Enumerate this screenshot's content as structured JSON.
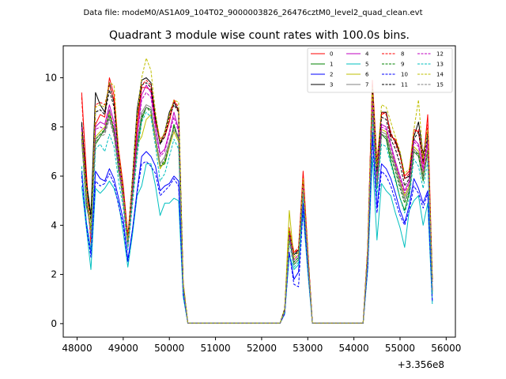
{
  "file_title": "Data file: modeM0/AS1A09_104T02_9000003826_26476cztM0_level2_quad_clean.evt",
  "chart_data": {
    "type": "line",
    "title": "Quadrant 3 module wise count rates with 100.0s bins.",
    "xlabel": "",
    "ylabel": "",
    "x_offset_label": "+3.356e8",
    "xlim": [
      47700,
      56200
    ],
    "ylim": [
      -0.55,
      11.3
    ],
    "xticks": [
      48000,
      49000,
      50000,
      51000,
      52000,
      53000,
      54000,
      55000,
      56000
    ],
    "xtick_labels": [
      "48000",
      "49000",
      "50000",
      "51000",
      "52000",
      "53000",
      "54000",
      "55000",
      "56000"
    ],
    "yticks": [
      0,
      2,
      4,
      6,
      8,
      10
    ],
    "ytick_labels": [
      "0",
      "2",
      "4",
      "6",
      "8",
      "10"
    ],
    "legend_position": "top-right",
    "legend_columns": 4,
    "x": [
      48100,
      48200,
      48300,
      48400,
      48500,
      48600,
      48700,
      48800,
      48900,
      49000,
      49100,
      49200,
      49300,
      49400,
      49500,
      49600,
      49700,
      49800,
      49900,
      50000,
      50100,
      50200,
      50300,
      50400,
      51000,
      51500,
      52000,
      52400,
      52500,
      52600,
      52700,
      52800,
      52900,
      53000,
      53100,
      53500,
      54000,
      54200,
      54300,
      54400,
      54500,
      54600,
      54700,
      54800,
      54900,
      55000,
      55100,
      55200,
      55300,
      55400,
      55500,
      55600,
      55700
    ],
    "series": [
      {
        "name": "0",
        "color": "#ff0000",
        "dash": "solid",
        "values": [
          9.4,
          6.2,
          3.3,
          8.1,
          8.5,
          8.4,
          10.0,
          9.3,
          7.1,
          5.6,
          3.6,
          5.7,
          8.0,
          9.6,
          9.6,
          9.5,
          8.2,
          7.4,
          7.6,
          8.2,
          9.1,
          8.6,
          1.6,
          0.02,
          0.02,
          0.02,
          0.02,
          0.02,
          0.6,
          3.9,
          2.9,
          3.0,
          6.2,
          3.0,
          0.02,
          0.02,
          0.02,
          0.02,
          3.1,
          9.9,
          6.6,
          8.5,
          8.6,
          7.6,
          7.5,
          6.9,
          6.0,
          6.2,
          7.9,
          7.8,
          6.5,
          8.5,
          1.8
        ]
      },
      {
        "name": "1",
        "color": "#008000",
        "dash": "solid",
        "values": [
          7.5,
          4.8,
          3.9,
          7.3,
          7.6,
          7.9,
          8.7,
          7.8,
          6.2,
          5.2,
          3.2,
          5.1,
          7.1,
          8.3,
          8.8,
          8.7,
          7.6,
          6.4,
          6.5,
          7.2,
          8.1,
          7.5,
          1.5,
          0.02,
          0.02,
          0.02,
          0.02,
          0.02,
          0.5,
          3.5,
          2.4,
          2.6,
          5.4,
          2.7,
          0.02,
          0.02,
          0.02,
          0.02,
          2.8,
          8.6,
          5.5,
          7.7,
          7.5,
          6.6,
          5.9,
          5.1,
          4.6,
          5.3,
          7.0,
          6.8,
          5.8,
          7.1,
          1.2
        ]
      },
      {
        "name": "2",
        "color": "#0000ff",
        "dash": "solid",
        "values": [
          6.2,
          4.1,
          2.9,
          6.2,
          5.9,
          5.8,
          6.3,
          5.9,
          5.1,
          4.2,
          2.6,
          3.8,
          5.4,
          6.8,
          7.0,
          6.8,
          6.4,
          5.4,
          5.6,
          5.7,
          6.0,
          5.8,
          1.2,
          0.02,
          0.02,
          0.02,
          0.02,
          0.02,
          0.4,
          2.9,
          1.8,
          2.1,
          4.9,
          2.4,
          0.02,
          0.02,
          0.02,
          0.02,
          2.4,
          7.8,
          4.7,
          6.5,
          6.3,
          5.9,
          5.3,
          4.6,
          4.1,
          4.8,
          5.9,
          5.5,
          4.9,
          5.4,
          0.9
        ]
      },
      {
        "name": "3",
        "color": "#000000",
        "dash": "solid",
        "values": [
          8.2,
          5.8,
          4.4,
          9.4,
          8.9,
          8.6,
          9.8,
          9.0,
          6.8,
          5.4,
          3.4,
          5.9,
          8.7,
          9.9,
          10.0,
          9.8,
          8.4,
          7.3,
          7.8,
          8.6,
          9.0,
          8.7,
          1.6,
          0.02,
          0.02,
          0.02,
          0.02,
          0.02,
          0.6,
          3.7,
          2.8,
          3.0,
          5.8,
          2.9,
          0.02,
          0.02,
          0.02,
          0.02,
          3.0,
          9.7,
          6.3,
          8.6,
          8.6,
          7.7,
          7.4,
          6.9,
          5.9,
          6.0,
          7.6,
          8.2,
          6.9,
          7.8,
          1.8
        ]
      },
      {
        "name": "4",
        "color": "#bf00bf",
        "dash": "solid",
        "values": [
          8.0,
          5.2,
          3.6,
          8.0,
          8.2,
          8.1,
          8.9,
          8.2,
          6.6,
          5.3,
          3.3,
          5.5,
          7.6,
          9.3,
          9.7,
          9.4,
          8.0,
          6.9,
          7.1,
          7.8,
          8.6,
          7.9,
          1.5,
          0.02,
          0.02,
          0.02,
          0.02,
          0.02,
          0.5,
          3.6,
          2.6,
          2.8,
          5.7,
          2.8,
          0.02,
          0.02,
          0.02,
          0.02,
          2.9,
          9.1,
          5.9,
          8.1,
          8.0,
          7.3,
          6.6,
          6.0,
          5.4,
          5.8,
          7.5,
          7.3,
          6.3,
          7.5,
          1.4
        ]
      },
      {
        "name": "5",
        "color": "#00bfbf",
        "dash": "solid",
        "values": [
          5.6,
          3.9,
          2.2,
          5.5,
          5.3,
          5.5,
          5.8,
          5.5,
          4.9,
          3.7,
          2.3,
          3.6,
          5.2,
          5.6,
          6.5,
          6.5,
          5.6,
          4.4,
          4.9,
          4.9,
          5.1,
          5.0,
          1.1,
          0.02,
          0.02,
          0.02,
          0.02,
          0.02,
          0.4,
          2.8,
          2.2,
          2.4,
          4.5,
          2.1,
          0.02,
          0.02,
          0.02,
          0.02,
          2.2,
          6.8,
          3.4,
          5.7,
          5.4,
          5.2,
          4.5,
          3.9,
          3.1,
          4.6,
          5.0,
          5.2,
          4.0,
          4.9,
          0.8
        ]
      },
      {
        "name": "6",
        "color": "#bfbf00",
        "dash": "solid",
        "values": [
          7.8,
          5.5,
          3.8,
          7.6,
          7.8,
          8.0,
          8.6,
          7.9,
          6.5,
          5.1,
          3.3,
          5.3,
          7.3,
          7.6,
          8.3,
          8.5,
          7.4,
          6.3,
          6.6,
          7.2,
          7.8,
          7.4,
          1.5,
          0.02,
          0.02,
          0.02,
          0.02,
          0.02,
          0.5,
          4.6,
          2.6,
          2.8,
          5.5,
          2.7,
          0.02,
          0.02,
          0.02,
          0.02,
          2.8,
          8.8,
          5.8,
          7.9,
          7.8,
          7.0,
          6.5,
          5.8,
          5.2,
          5.6,
          7.2,
          7.0,
          6.1,
          7.1,
          1.4
        ]
      },
      {
        "name": "7",
        "color": "#808080",
        "dash": "solid",
        "values": [
          7.6,
          5.3,
          3.7,
          7.5,
          7.7,
          7.8,
          8.4,
          7.7,
          6.4,
          5.0,
          3.2,
          5.2,
          7.2,
          8.6,
          8.9,
          8.8,
          7.6,
          6.5,
          6.8,
          7.4,
          8.0,
          7.6,
          1.5,
          0.02,
          0.02,
          0.02,
          0.02,
          0.02,
          0.5,
          3.5,
          2.5,
          2.7,
          5.5,
          2.7,
          0.02,
          0.02,
          0.02,
          0.02,
          2.8,
          8.7,
          5.7,
          7.8,
          7.7,
          7.0,
          6.4,
          5.7,
          5.1,
          5.5,
          7.1,
          6.9,
          6.0,
          7.0,
          1.3
        ]
      },
      {
        "name": "8",
        "color": "#ff0000",
        "dash": "dashed",
        "values": [
          9.2,
          6.0,
          3.2,
          8.9,
          9.0,
          8.9,
          9.7,
          9.1,
          7.0,
          5.5,
          3.5,
          5.8,
          8.2,
          9.7,
          9.9,
          9.7,
          8.3,
          7.5,
          7.7,
          8.4,
          9.1,
          8.8,
          1.7,
          0.02,
          0.02,
          0.02,
          0.02,
          0.02,
          0.6,
          3.8,
          2.9,
          3.1,
          6.0,
          3.0,
          0.02,
          0.02,
          0.02,
          0.02,
          3.1,
          9.8,
          6.5,
          8.6,
          8.5,
          7.8,
          7.3,
          6.8,
          5.9,
          6.1,
          7.8,
          7.9,
          6.7,
          8.1,
          1.7
        ]
      },
      {
        "name": "9",
        "color": "#008000",
        "dash": "dashed",
        "values": [
          7.7,
          5.0,
          3.8,
          7.5,
          7.7,
          7.9,
          8.5,
          7.9,
          6.3,
          5.1,
          3.2,
          5.2,
          7.3,
          8.4,
          8.8,
          8.6,
          7.5,
          6.4,
          6.6,
          7.3,
          8.0,
          7.5,
          1.5,
          0.02,
          0.02,
          0.02,
          0.02,
          0.02,
          0.5,
          3.5,
          2.5,
          2.7,
          5.4,
          2.7,
          0.02,
          0.02,
          0.02,
          0.02,
          2.8,
          8.7,
          5.7,
          7.7,
          7.6,
          6.8,
          6.2,
          5.5,
          4.9,
          5.4,
          7.0,
          6.9,
          5.9,
          7.0,
          1.3
        ]
      },
      {
        "name": "10",
        "color": "#0000ff",
        "dash": "dashed",
        "values": [
          6.0,
          4.0,
          2.7,
          5.8,
          5.6,
          5.7,
          6.1,
          5.7,
          4.8,
          4.0,
          2.5,
          3.8,
          5.3,
          6.5,
          6.6,
          6.4,
          6.1,
          5.2,
          5.4,
          5.6,
          5.9,
          5.6,
          1.2,
          0.02,
          0.02,
          0.02,
          0.02,
          0.02,
          0.4,
          2.9,
          1.6,
          1.5,
          4.7,
          2.3,
          0.02,
          0.02,
          0.02,
          0.02,
          2.3,
          7.5,
          4.5,
          6.2,
          6.0,
          5.6,
          5.0,
          4.4,
          4.0,
          4.6,
          5.6,
          5.3,
          4.7,
          5.3,
          0.9
        ]
      },
      {
        "name": "11",
        "color": "#000000",
        "dash": "dashed",
        "values": [
          8.1,
          5.7,
          4.2,
          8.6,
          8.7,
          8.5,
          9.5,
          8.8,
          6.8,
          5.4,
          3.4,
          5.8,
          8.4,
          9.7,
          9.8,
          9.6,
          8.3,
          7.3,
          7.6,
          8.4,
          8.9,
          8.6,
          1.6,
          0.02,
          0.02,
          0.02,
          0.02,
          0.02,
          0.6,
          3.7,
          2.8,
          2.9,
          5.8,
          2.9,
          0.02,
          0.02,
          0.02,
          0.02,
          3.0,
          9.5,
          6.2,
          8.4,
          8.3,
          7.5,
          7.1,
          6.5,
          5.6,
          5.9,
          7.5,
          7.8,
          6.6,
          7.6,
          1.7
        ]
      },
      {
        "name": "12",
        "color": "#bf00bf",
        "dash": "dashed",
        "values": [
          7.9,
          5.1,
          3.5,
          7.9,
          8.0,
          7.9,
          8.7,
          8.0,
          6.5,
          5.2,
          3.2,
          5.4,
          7.5,
          9.1,
          9.4,
          9.2,
          7.9,
          6.8,
          7.0,
          7.7,
          8.4,
          7.8,
          1.5,
          0.02,
          0.02,
          0.02,
          0.02,
          0.02,
          0.5,
          3.6,
          2.6,
          2.8,
          5.6,
          2.8,
          0.02,
          0.02,
          0.02,
          0.02,
          2.9,
          9.0,
          5.8,
          8.0,
          7.9,
          7.2,
          6.5,
          5.9,
          5.3,
          5.7,
          7.4,
          7.2,
          6.2,
          7.3,
          1.4
        ]
      },
      {
        "name": "13",
        "color": "#00bfbf",
        "dash": "dashed",
        "values": [
          6.4,
          4.2,
          3.0,
          7.1,
          7.3,
          7.0,
          7.7,
          7.2,
          5.8,
          4.7,
          3.0,
          4.8,
          6.8,
          8.2,
          8.6,
          8.4,
          7.2,
          5.8,
          6.1,
          6.8,
          7.5,
          7.1,
          1.4,
          0.02,
          0.02,
          0.02,
          0.02,
          0.02,
          0.5,
          3.3,
          2.3,
          2.5,
          5.2,
          2.6,
          0.02,
          0.02,
          0.02,
          0.02,
          2.7,
          8.3,
          5.2,
          7.3,
          7.2,
          6.5,
          5.8,
          5.1,
          4.5,
          5.1,
          6.7,
          6.4,
          5.5,
          6.6,
          1.2
        ]
      },
      {
        "name": "14",
        "color": "#bfbf00",
        "dash": "dashed",
        "values": [
          7.8,
          5.4,
          3.7,
          8.8,
          8.9,
          8.8,
          9.8,
          9.7,
          7.0,
          5.3,
          3.4,
          5.9,
          8.5,
          10.0,
          10.8,
          10.3,
          8.6,
          7.4,
          7.8,
          8.5,
          9.1,
          9.0,
          1.7,
          0.02,
          0.02,
          0.02,
          0.02,
          0.02,
          0.6,
          3.9,
          2.7,
          2.9,
          5.9,
          2.9,
          0.02,
          0.02,
          0.02,
          0.02,
          3.1,
          9.6,
          6.4,
          8.9,
          8.8,
          8.2,
          7.6,
          7.0,
          6.1,
          6.3,
          7.9,
          9.1,
          6.7,
          7.9,
          1.8
        ]
      },
      {
        "name": "15",
        "color": "#808080",
        "dash": "dashed",
        "values": [
          7.4,
          5.0,
          3.6,
          7.4,
          7.6,
          7.7,
          8.3,
          7.6,
          6.3,
          4.9,
          3.1,
          5.1,
          7.1,
          8.5,
          8.8,
          8.7,
          7.5,
          6.4,
          6.7,
          7.3,
          7.9,
          7.5,
          1.5,
          0.02,
          0.02,
          0.02,
          0.02,
          0.02,
          0.5,
          3.4,
          2.4,
          2.6,
          5.4,
          2.6,
          0.02,
          0.02,
          0.02,
          0.02,
          2.7,
          8.6,
          5.6,
          7.7,
          7.6,
          6.9,
          6.3,
          5.6,
          5.0,
          5.4,
          7.0,
          6.8,
          5.9,
          6.9,
          1.3
        ]
      }
    ]
  }
}
